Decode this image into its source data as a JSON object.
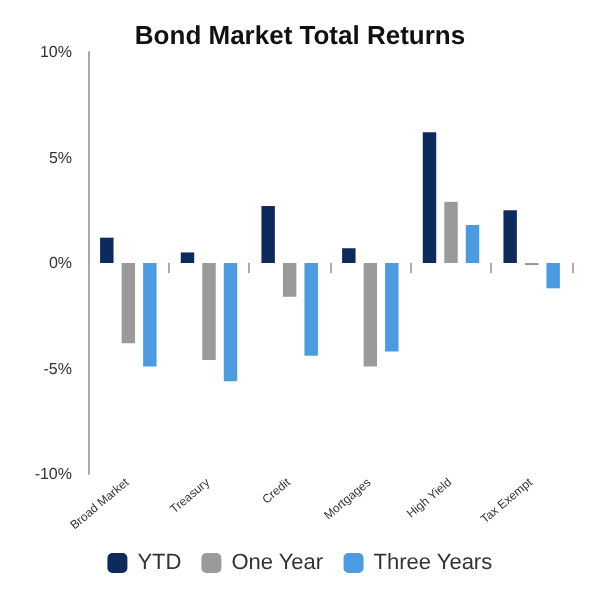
{
  "chart_data": {
    "type": "bar",
    "title": "Bond Market Total Returns",
    "categories": [
      "Broad Market",
      "Treasury",
      "Credit",
      "Mortgages",
      "High Yield",
      "Tax Exempt"
    ],
    "series": [
      {
        "name": "YTD",
        "color": "#0d2a5c",
        "values": [
          1.2,
          0.5,
          2.7,
          0.7,
          6.2,
          2.5
        ]
      },
      {
        "name": "One Year",
        "color": "#9a9a9a",
        "values": [
          -3.8,
          -4.6,
          -1.6,
          -4.9,
          2.9,
          -0.1
        ]
      },
      {
        "name": "Three Years",
        "color": "#4a9be0",
        "values": [
          -4.9,
          -5.6,
          -4.4,
          -4.2,
          1.8,
          -1.2
        ]
      }
    ],
    "ylim": [
      -10,
      10
    ],
    "yticks": [
      {
        "value": -10,
        "label": "-10%"
      },
      {
        "value": -5,
        "label": "-5%"
      },
      {
        "value": 0,
        "label": "0%"
      },
      {
        "value": 5,
        "label": "5%"
      },
      {
        "value": 10,
        "label": "10%"
      }
    ],
    "grid": false,
    "legend": "bottom"
  }
}
